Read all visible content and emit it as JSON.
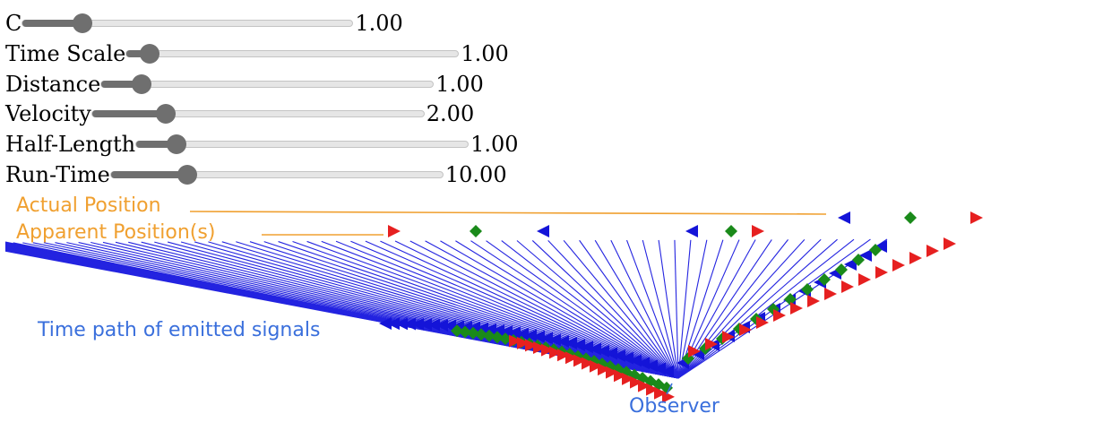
{
  "controls": [
    {
      "label": "C",
      "value": "1.00",
      "fraction": 0.18
    },
    {
      "label": "Time Scale",
      "value": "1.00",
      "fraction": 0.07
    },
    {
      "label": "Distance",
      "value": "1.00",
      "fraction": 0.12
    },
    {
      "label": "Velocity",
      "value": "2.00",
      "fraction": 0.22
    },
    {
      "label": "Half-Length",
      "value": "1.00",
      "fraction": 0.12
    },
    {
      "label": "Run-Time",
      "value": "10.00",
      "fraction": 0.23
    }
  ],
  "annotations": {
    "actual_position": "Actual Position",
    "apparent_positions": "Apparent Position(s)",
    "time_path": "Time path of emitted signals",
    "observer": "Observer"
  },
  "colors": {
    "annotation_orange": "#f0a030",
    "annotation_blue": "#3a6fdc",
    "signal_line": "#2424e0",
    "leading_marker": "#e62020",
    "center_marker": "#1a8a1a",
    "trailing_marker": "#1414d8"
  }
}
